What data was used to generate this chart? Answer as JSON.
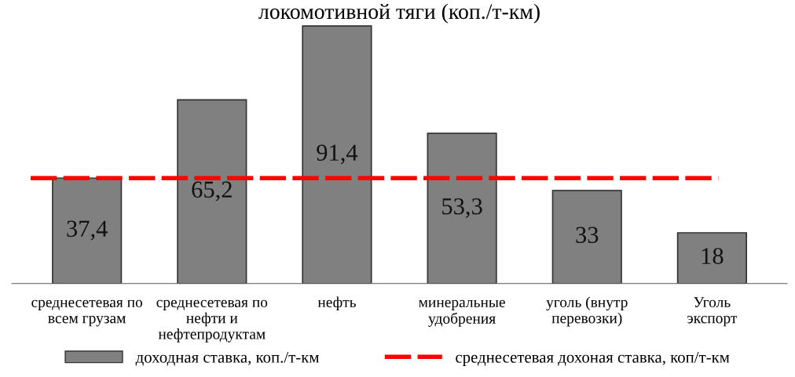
{
  "chart_data": {
    "type": "bar",
    "title": "локомотивной тяги (коп./т-км)",
    "categories": [
      "среднесетевая по\nвсем грузам",
      "среднесетевая по\nнефти и\nнефтепродуктам",
      "нефть",
      "минеральные\nудобрения",
      "уголь (внутр\nперевозки)",
      "Уголь\nэкспорт"
    ],
    "series": [
      {
        "name": "доходная ставка, коп./т-км",
        "color": "#808080",
        "values": [
          37.4,
          65.2,
          91.4,
          53.3,
          33,
          18
        ],
        "value_labels": [
          "37,4",
          "65,2",
          "91,4",
          "53,3",
          "33",
          "18"
        ]
      }
    ],
    "ref_lines": [
      {
        "axis": "y",
        "value": 37.4,
        "label": "среднесетевая дохоная ставка, коп/т-км",
        "color": "#ff0000",
        "line_style": "dashed"
      }
    ],
    "legend": "bottom",
    "grid": false
  }
}
